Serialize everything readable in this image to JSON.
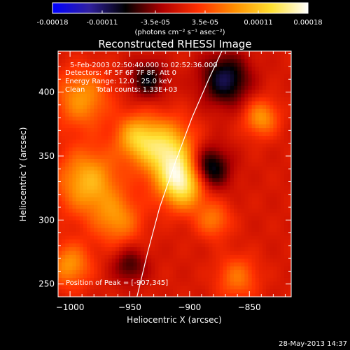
{
  "colorbar": {
    "ticks": [
      "-0.00018",
      "-0.00011",
      "-3.5e-05",
      "3.5e-05",
      "0.00011",
      "0.00018"
    ],
    "tick_values": [
      -0.00018,
      -0.00011,
      -3.5e-05,
      3.5e-05,
      0.00011,
      0.00018
    ],
    "range": [
      -0.00018,
      0.00018
    ],
    "unit_label": "(photons cm⁻² s⁻¹ asec⁻²)"
  },
  "chart_data": {
    "type": "heatmap",
    "title": "Reconstructed RHESSI Image",
    "xlabel": "Heliocentric X (arcsec)",
    "ylabel": "Heliocentric Y (arcsec)",
    "xlim": [
      -1010,
      -815
    ],
    "ylim": [
      240,
      432
    ],
    "x_ticks": [
      -1000,
      -950,
      -900,
      -850
    ],
    "x_tick_labels": [
      "−1000",
      "−950",
      "−900",
      "−850"
    ],
    "y_ticks": [
      250,
      300,
      350,
      400
    ],
    "y_tick_labels": [
      "250",
      "300",
      "350",
      "400"
    ],
    "info_lines": [
      "5-Feb-2003 02:50:40.000 to 02:52:36.000",
      "Detectors: 4F 5F 6F 7F 8F, Att 0",
      "Energy Range: 12.0 - 25.0 keV",
      "Clean     Total counts: 1.33E+03"
    ],
    "peak_label": "Position of Peak = [-907,345]",
    "peak": [
      -907,
      345
    ],
    "colormap": [
      "#0000ff",
      "#3020a0",
      "#000000",
      "#b00000",
      "#ff3000",
      "#ff9000",
      "#ffe030",
      "#ffffff"
    ],
    "limb_curve": [
      [
        -944,
        240
      ],
      [
        -935,
        275
      ],
      [
        -925,
        310
      ],
      [
        -912,
        345
      ],
      [
        -898,
        380
      ],
      [
        -884,
        410
      ],
      [
        -873,
        432
      ]
    ],
    "sources": [
      {
        "x": -905,
        "y": 330,
        "amp": 0.00016,
        "s": 14
      },
      {
        "x": -920,
        "y": 355,
        "amp": 0.00013,
        "s": 16
      },
      {
        "x": -945,
        "y": 365,
        "amp": 9e-05,
        "s": 12
      },
      {
        "x": -985,
        "y": 330,
        "amp": 0.0001,
        "s": 18
      },
      {
        "x": -990,
        "y": 395,
        "amp": 8e-05,
        "s": 16
      },
      {
        "x": -960,
        "y": 300,
        "amp": 7e-05,
        "s": 14
      },
      {
        "x": -880,
        "y": 300,
        "amp": 6e-05,
        "s": 10
      },
      {
        "x": -840,
        "y": 380,
        "amp": 8e-05,
        "s": 10
      },
      {
        "x": -860,
        "y": 255,
        "amp": 6e-05,
        "s": 12
      },
      {
        "x": -1000,
        "y": 265,
        "amp": 8e-05,
        "s": 12
      },
      {
        "x": -885,
        "y": 340,
        "amp": -0.00012,
        "s": 12
      },
      {
        "x": -870,
        "y": 410,
        "amp": -0.0001,
        "s": 14
      },
      {
        "x": -935,
        "y": 410,
        "amp": -8e-05,
        "s": 10
      },
      {
        "x": -950,
        "y": 265,
        "amp": -6e-05,
        "s": 10
      }
    ]
  },
  "footer": {
    "timestamp": "28-May-2013 14:37"
  }
}
